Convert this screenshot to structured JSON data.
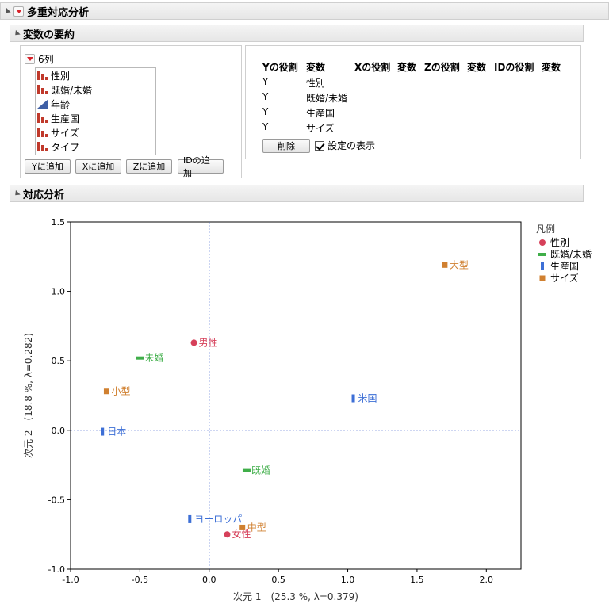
{
  "report": {
    "title": "多重対応分析"
  },
  "variable_summary": {
    "title": "変数の要約",
    "column_count": "6列",
    "columns": [
      {
        "label": "性別",
        "type": "nominal"
      },
      {
        "label": "既婚/未婚",
        "type": "nominal"
      },
      {
        "label": "年齢",
        "type": "continuous"
      },
      {
        "label": "生産国",
        "type": "nominal"
      },
      {
        "label": "サイズ",
        "type": "nominal"
      },
      {
        "label": "タイプ",
        "type": "nominal"
      }
    ],
    "buttons": {
      "add_y": "Yに追加",
      "add_x": "Xに追加",
      "add_z": "Zに追加",
      "add_id": "IDの追加"
    },
    "table_headers": [
      "Yの役割",
      "変数",
      "Xの役割",
      "変数",
      "Zの役割",
      "変数",
      "IDの役割",
      "変数"
    ],
    "roles": [
      {
        "role": "Y",
        "variable": "性別"
      },
      {
        "role": "Y",
        "variable": "既婚/未婚"
      },
      {
        "role": "Y",
        "variable": "生産国"
      },
      {
        "role": "Y",
        "variable": "サイズ"
      }
    ],
    "delete_button": "削除",
    "show_settings_label": "設定の表示",
    "show_settings_checked": true
  },
  "correspondence": {
    "title": "対応分析"
  },
  "chart_data": {
    "type": "scatter",
    "title": "",
    "xlabel": "次元 1　(25.3 %, λ=0.379)",
    "ylabel": "次元 2　(18.8 %, λ=0.282)",
    "xlim": [
      -1.0,
      2.25
    ],
    "ylim": [
      -1.0,
      1.5
    ],
    "xticks": [
      "-1.0",
      "-0.5",
      "0.0",
      "0.5",
      "1.0",
      "1.5",
      "2.0"
    ],
    "yticks": [
      "-1.0",
      "-0.5",
      "0.0",
      "0.5",
      "1.0",
      "1.5"
    ],
    "reference_lines": {
      "x": 0.0,
      "y": 0.0
    },
    "legend": {
      "title": "凡例",
      "placement": "right"
    },
    "series": [
      {
        "name": "性別",
        "color": "#d6405a",
        "marker": "circle",
        "points": [
          {
            "label": "男性",
            "x": -0.11,
            "y": 0.63
          },
          {
            "label": "女性",
            "x": 0.13,
            "y": -0.75
          }
        ]
      },
      {
        "name": "既婚/未婚",
        "color": "#3fae49",
        "marker": "hbar",
        "points": [
          {
            "label": "未婚",
            "x": -0.5,
            "y": 0.52
          },
          {
            "label": "既婚",
            "x": 0.27,
            "y": -0.29
          }
        ]
      },
      {
        "name": "生産国",
        "color": "#3d6fd6",
        "marker": "vbar",
        "points": [
          {
            "label": "米国",
            "x": 1.04,
            "y": 0.23
          },
          {
            "label": "日本",
            "x": -0.77,
            "y": -0.01
          },
          {
            "label": "ヨーロッパ",
            "x": -0.14,
            "y": -0.64
          }
        ]
      },
      {
        "name": "サイズ",
        "color": "#d08030",
        "marker": "square",
        "points": [
          {
            "label": "大型",
            "x": 1.7,
            "y": 1.19
          },
          {
            "label": "小型",
            "x": -0.74,
            "y": 0.28
          },
          {
            "label": "中型",
            "x": 0.24,
            "y": -0.7
          }
        ]
      }
    ]
  }
}
